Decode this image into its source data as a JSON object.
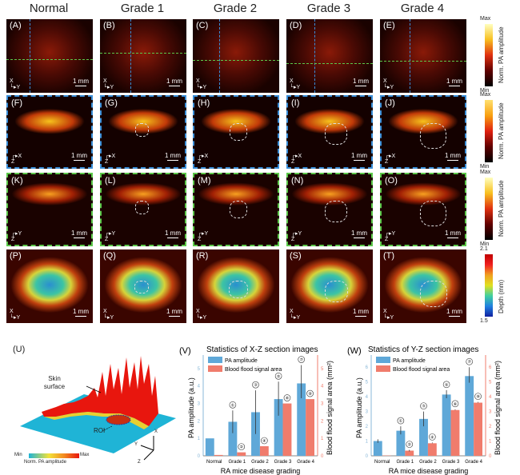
{
  "figure": {
    "columns": [
      "Normal",
      "Grade 1",
      "Grade 2",
      "Grade 3",
      "Grade 4"
    ],
    "rows": [
      {
        "labels": [
          "(A)",
          "(B)",
          "(C)",
          "(D)",
          "(E)"
        ],
        "axes": "X-Y",
        "type": "mip"
      },
      {
        "labels": [
          "(F)",
          "(G)",
          "(H)",
          "(I)",
          "(J)"
        ],
        "axes": "X-Z",
        "type": "xz"
      },
      {
        "labels": [
          "(K)",
          "(L)",
          "(M)",
          "(N)",
          "(O)"
        ],
        "axes": "Y-Z",
        "type": "yz"
      },
      {
        "labels": [
          "(P)",
          "(Q)",
          "(R)",
          "(S)",
          "(T)"
        ],
        "axes": "X-Y",
        "type": "depth"
      }
    ],
    "scale_bar": "1 mm",
    "colorbars": [
      {
        "max": "Max",
        "min": "Min",
        "title": "Norm. PA amplitude"
      },
      {
        "max": "Max",
        "min": "Min",
        "title": "Norm. PA amplitude"
      },
      {
        "max": "Max",
        "min": "Min",
        "title": "Norm. PA amplitude"
      },
      {
        "max": "2.1",
        "min": "1.5",
        "title": "Depth (mm)"
      }
    ],
    "panel_u": {
      "label": "(U)",
      "skin_label": "Skin surface",
      "roi_label": "ROI",
      "cb_min": "Min",
      "cb_max": "Max",
      "cb_title": "Norm. PA amplitude",
      "axes": [
        "X",
        "Y",
        "Z"
      ]
    }
  },
  "chart_data": [
    {
      "type": "bar",
      "panel": "(V)",
      "title": "Statistics of X-Z section images",
      "xlabel": "RA mice disease grading",
      "ylabel": "PA amplitude (a.u.)",
      "y2label": "Blood flood signal area (mm²)",
      "categories": [
        "Normal",
        "Grade 1",
        "Grade 2",
        "Grade 3",
        "Grade 4"
      ],
      "ylim": [
        0,
        5.5
      ],
      "y2lim": [
        0,
        5.5
      ],
      "yticks": [
        0,
        1,
        2,
        3,
        4,
        5
      ],
      "y2ticks": [
        0,
        1,
        2,
        3,
        4,
        5
      ],
      "series": [
        {
          "name": "PA amplitude",
          "axis": "left",
          "color": "#5fa8d8",
          "values": [
            1.0,
            1.95,
            2.5,
            3.25,
            4.15
          ],
          "err_low": [
            0,
            0.65,
            1.25,
            0.95,
            0.85
          ],
          "err_high": [
            0,
            0.65,
            1.25,
            1.0,
            1.05
          ]
        },
        {
          "name": "Blood flood signal area",
          "axis": "right",
          "color": "#f07c6c",
          "values": [
            0.05,
            0.2,
            0.55,
            3.0,
            3.25
          ],
          "err_low": [
            0,
            0,
            0,
            0,
            0
          ],
          "err_high": [
            0,
            0,
            0,
            0,
            0
          ]
        }
      ],
      "annotations": [
        "①",
        "②",
        "③",
        "④",
        "⑤",
        "⑥",
        "⑦",
        "⑧"
      ]
    },
    {
      "type": "bar",
      "panel": "(W)",
      "title": "Statistics of Y-Z section images",
      "xlabel": "RA mice disease grading",
      "ylabel": "PA amplitude (a.u.)",
      "y2label": "Blood flood signal area (mm²)",
      "categories": [
        "Normal",
        "Grade 1",
        "Grade 2",
        "Grade 3",
        "Grade 4"
      ],
      "ylim": [
        0,
        6.5
      ],
      "y2lim": [
        0,
        6.5
      ],
      "yticks": [
        0,
        1,
        2,
        3,
        4,
        5,
        6
      ],
      "y2ticks": [
        0,
        1,
        2,
        3,
        4,
        5,
        6
      ],
      "series": [
        {
          "name": "PA amplitude",
          "axis": "left",
          "color": "#5fa8d8",
          "values": [
            1.0,
            1.7,
            2.5,
            4.15,
            5.4
          ],
          "err_low": [
            0.12,
            0.25,
            0.5,
            0.25,
            0.45
          ],
          "err_high": [
            0.12,
            0.3,
            0.5,
            0.3,
            0.6
          ]
        },
        {
          "name": "Blood flood signal area",
          "axis": "right",
          "color": "#f07c6c",
          "values": [
            0.02,
            0.35,
            0.85,
            3.1,
            3.6
          ],
          "err_low": [
            0,
            0.05,
            0,
            0,
            0
          ],
          "err_high": [
            0,
            0.05,
            0.05,
            0.05,
            0.05
          ]
        }
      ],
      "annotations": [
        "①",
        "②",
        "③",
        "④",
        "⑤",
        "⑥",
        "⑦",
        "⑧"
      ]
    }
  ]
}
